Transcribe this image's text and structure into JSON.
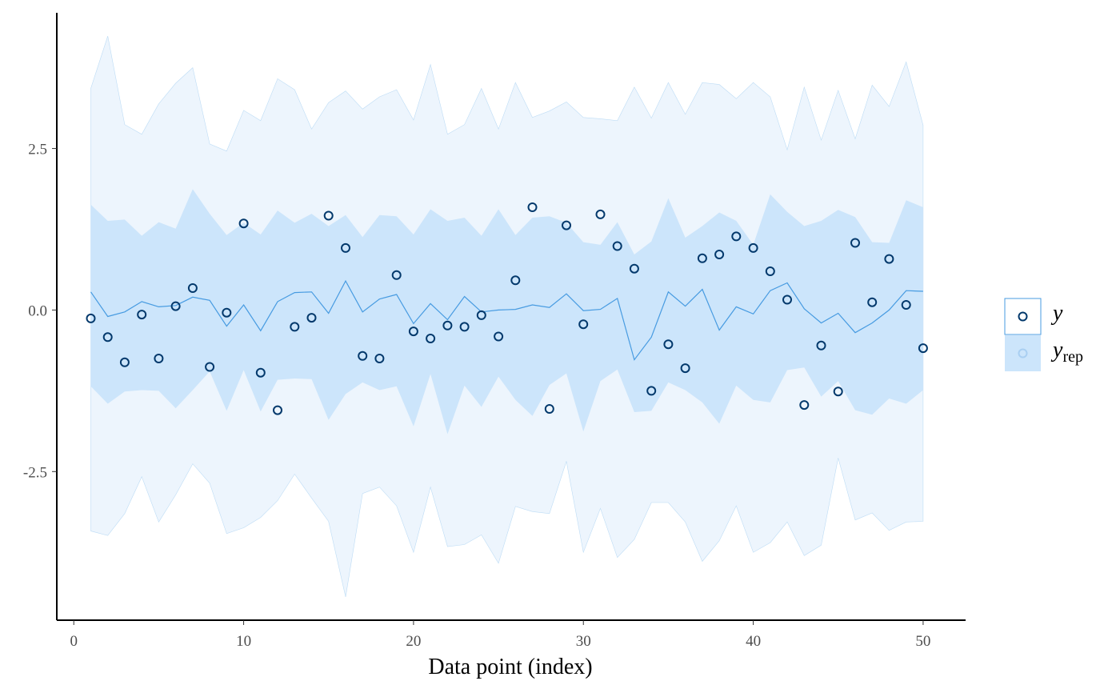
{
  "chart_data": {
    "type": "line",
    "title": "",
    "xlabel": "Data point (index)",
    "ylabel": "",
    "xlim": [
      -1,
      52.5
    ],
    "ylim": [
      -4.8,
      4.6
    ],
    "x_ticks": [
      0,
      10,
      20,
      30,
      40,
      50
    ],
    "x_tick_labels": [
      "0",
      "10",
      "20",
      "30",
      "40",
      "50"
    ],
    "y_ticks": [
      -2.5,
      0,
      2.5
    ],
    "y_tick_labels": [
      "-2.5",
      "0.0",
      "2.5"
    ],
    "grid": false,
    "legend_position": "right",
    "colors": {
      "observed": "#03396c",
      "median_line": "#479be1",
      "inner_band": "#cce5fb",
      "outer_band": "#edf5fd",
      "outer_band_edge": "#bddcf5"
    },
    "x": [
      1,
      2,
      3,
      4,
      5,
      6,
      7,
      8,
      9,
      10,
      11,
      12,
      13,
      14,
      15,
      16,
      17,
      18,
      19,
      20,
      21,
      22,
      23,
      24,
      25,
      26,
      27,
      28,
      29,
      30,
      31,
      32,
      33,
      34,
      35,
      36,
      37,
      38,
      39,
      40,
      41,
      42,
      43,
      44,
      45,
      46,
      47,
      48,
      49,
      50
    ],
    "series": [
      {
        "name": "y",
        "kind": "points",
        "values": [
          -0.13,
          -0.42,
          -0.81,
          -0.07,
          -0.75,
          0.06,
          0.34,
          -0.88,
          -0.04,
          1.34,
          -0.97,
          -1.55,
          -0.26,
          -0.12,
          1.46,
          0.96,
          -0.71,
          -0.75,
          0.54,
          -0.33,
          -0.44,
          -0.24,
          -0.26,
          -0.08,
          -0.41,
          0.46,
          1.59,
          -1.53,
          1.31,
          -0.22,
          1.48,
          0.99,
          0.64,
          -1.25,
          -0.53,
          -0.9,
          0.8,
          0.86,
          1.14,
          0.96,
          0.6,
          0.16,
          -1.47,
          -0.55,
          -1.26,
          1.04,
          0.12,
          0.79,
          0.08,
          -0.59
        ]
      },
      {
        "name": "yrep",
        "kind": "interval",
        "median": [
          0.28,
          -0.1,
          -0.03,
          0.13,
          0.05,
          0.07,
          0.2,
          0.15,
          -0.25,
          0.08,
          -0.32,
          0.13,
          0.27,
          0.28,
          -0.05,
          0.45,
          -0.03,
          0.17,
          0.24,
          -0.21,
          0.1,
          -0.15,
          0.21,
          -0.03,
          0.0,
          0.01,
          0.08,
          0.04,
          0.25,
          -0.01,
          0.01,
          0.18,
          -0.77,
          -0.42,
          0.28,
          0.06,
          0.32,
          -0.31,
          0.05,
          -0.06,
          0.3,
          0.42,
          0.02,
          -0.2,
          -0.05,
          -0.35,
          -0.2,
          0.0,
          0.3,
          0.29
        ],
        "inner_low": [
          -1.18,
          -1.45,
          -1.26,
          -1.24,
          -1.25,
          -1.52,
          -1.24,
          -0.95,
          -1.56,
          -0.93,
          -1.57,
          -1.08,
          -1.06,
          -1.07,
          -1.7,
          -1.3,
          -1.12,
          -1.24,
          -1.18,
          -1.8,
          -0.99,
          -1.92,
          -1.17,
          -1.5,
          -1.03,
          -1.39,
          -1.64,
          -1.16,
          -0.98,
          -1.88,
          -1.1,
          -0.92,
          -1.58,
          -1.56,
          -1.12,
          -1.24,
          -1.43,
          -1.76,
          -1.17,
          -1.39,
          -1.43,
          -0.93,
          -0.89,
          -1.34,
          -1.1,
          -1.55,
          -1.62,
          -1.37,
          -1.45,
          -1.24
        ],
        "inner_high": [
          1.63,
          1.38,
          1.4,
          1.15,
          1.36,
          1.26,
          1.87,
          1.49,
          1.16,
          1.35,
          1.17,
          1.54,
          1.35,
          1.49,
          1.3,
          1.47,
          1.13,
          1.47,
          1.45,
          1.17,
          1.56,
          1.38,
          1.43,
          1.15,
          1.56,
          1.16,
          1.43,
          1.45,
          1.35,
          1.05,
          1.01,
          1.36,
          0.86,
          1.06,
          1.73,
          1.12,
          1.3,
          1.51,
          1.38,
          1.01,
          1.79,
          1.52,
          1.3,
          1.38,
          1.55,
          1.44,
          1.05,
          1.04,
          1.7,
          1.59
        ],
        "outer_low": [
          -3.42,
          -3.49,
          -3.15,
          -2.58,
          -3.28,
          -2.86,
          -2.38,
          -2.68,
          -3.46,
          -3.37,
          -3.21,
          -2.95,
          -2.54,
          -2.91,
          -3.27,
          -4.44,
          -2.84,
          -2.74,
          -3.03,
          -3.75,
          -2.74,
          -3.66,
          -3.63,
          -3.48,
          -3.92,
          -3.04,
          -3.12,
          -3.15,
          -2.34,
          -3.75,
          -3.07,
          -3.83,
          -3.55,
          -2.98,
          -2.98,
          -3.28,
          -3.89,
          -3.57,
          -3.03,
          -3.75,
          -3.6,
          -3.28,
          -3.8,
          -3.64,
          -2.29,
          -3.25,
          -3.14,
          -3.41,
          -3.28,
          -3.27
        ],
        "outer_high": [
          3.43,
          4.24,
          2.87,
          2.72,
          3.19,
          3.51,
          3.75,
          2.57,
          2.46,
          3.09,
          2.93,
          3.58,
          3.41,
          2.8,
          3.21,
          3.39,
          3.11,
          3.3,
          3.41,
          2.94,
          3.8,
          2.72,
          2.87,
          3.43,
          2.8,
          3.52,
          2.98,
          3.08,
          3.22,
          2.98,
          2.96,
          2.93,
          3.45,
          2.97,
          3.52,
          3.03,
          3.52,
          3.49,
          3.27,
          3.52,
          3.3,
          2.48,
          3.45,
          2.63,
          3.4,
          2.65,
          3.48,
          3.15,
          3.84,
          2.86
        ]
      }
    ],
    "legend": [
      {
        "key": "y",
        "label": "y",
        "sub": ""
      },
      {
        "key": "yrep",
        "label": "y",
        "sub": "rep"
      }
    ]
  }
}
